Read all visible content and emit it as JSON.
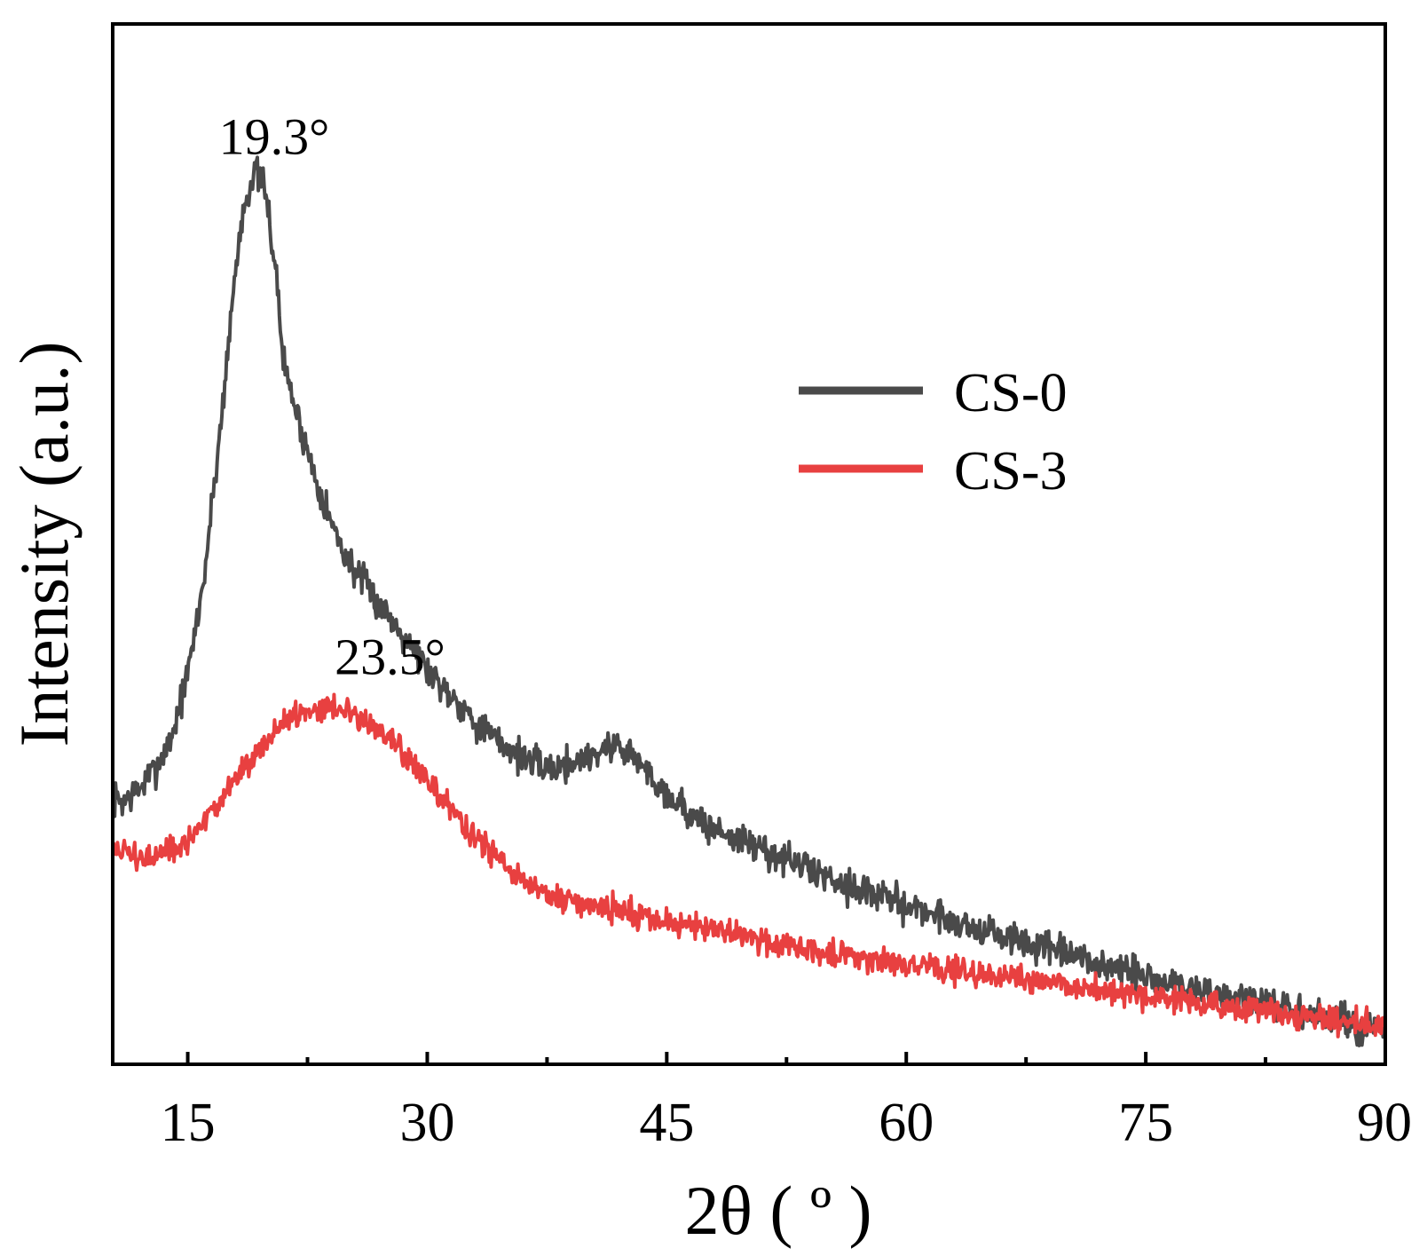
{
  "chart_data": {
    "type": "line",
    "title": "",
    "xlabel": "2θ ( º )",
    "ylabel": "Intensity (a.u.)",
    "xlim": [
      10.3,
      90
    ],
    "ylim": [
      0,
      100
    ],
    "x_ticks": [
      "15",
      "30",
      "45",
      "60",
      "75",
      "90"
    ],
    "x_tick_values": [
      15,
      30,
      45,
      60,
      75,
      90
    ],
    "x_minor_ticks": [
      22.5,
      37.5,
      52.5,
      67.5,
      82.5
    ],
    "y_ticks_shown": false,
    "legend_position": "center-right",
    "annotations": [
      {
        "text": "19.3°",
        "x": 19.3,
        "y": 87.5
      },
      {
        "text": "23.5°",
        "x": 23.5,
        "y": 37.5
      }
    ],
    "series": [
      {
        "name": "CS-0",
        "color": "#4a4a4a",
        "noise": 1.4,
        "x": [
          10.3,
          11,
          12,
          13,
          14,
          15,
          16,
          17,
          18,
          18.5,
          19,
          19.3,
          19.6,
          20,
          20.5,
          21,
          22,
          23,
          24,
          25,
          26,
          27,
          28,
          29,
          30,
          31,
          32,
          33,
          34,
          35,
          36,
          37,
          38,
          39,
          40,
          41,
          42,
          43,
          44,
          45,
          46,
          47,
          48,
          50,
          52,
          54,
          56,
          58,
          60,
          62,
          64,
          66,
          68,
          70,
          72,
          74,
          76,
          78,
          80,
          82,
          84,
          86,
          88,
          90
        ],
        "values": [
          25.5,
          25.3,
          26.5,
          28.5,
          31.5,
          37.5,
          46.5,
          60.5,
          76.5,
          82.5,
          85.0,
          85.8,
          85.0,
          82.5,
          76.5,
          67.5,
          61.5,
          56.5,
          52.0,
          48.5,
          46.3,
          44.2,
          42.3,
          40.5,
          38.0,
          36.3,
          34.8,
          33.0,
          31.5,
          30.5,
          29.5,
          28.7,
          28.5,
          29.0,
          29.5,
          30.3,
          30.7,
          29.5,
          27.7,
          26.0,
          24.8,
          23.3,
          22.6,
          21.3,
          20.0,
          18.7,
          17.5,
          16.3,
          15.3,
          14.3,
          13.2,
          12.3,
          11.4,
          10.5,
          9.6,
          8.8,
          8.0,
          7.3,
          6.6,
          5.9,
          5.2,
          4.5,
          3.8,
          3.1
        ]
      },
      {
        "name": "CS-3",
        "color": "#e84040",
        "noise": 1.1,
        "x": [
          10.3,
          11,
          12,
          13,
          14,
          15,
          16,
          17,
          18,
          19,
          20,
          21,
          22,
          23,
          23.5,
          24,
          25,
          26,
          27,
          28,
          29,
          30,
          31,
          32,
          33,
          34,
          35,
          36,
          37,
          38,
          40,
          42,
          44,
          46,
          48,
          50,
          52,
          54,
          56,
          58,
          60,
          62,
          64,
          66,
          68,
          70,
          72,
          74,
          76,
          78,
          80,
          82,
          84,
          86,
          88,
          90
        ],
        "values": [
          20.7,
          20.4,
          19.8,
          19.8,
          20.4,
          21.3,
          23.2,
          25.2,
          27.4,
          29.5,
          31.2,
          32.8,
          33.8,
          34.3,
          34.4,
          34.4,
          34.1,
          33.3,
          32.1,
          30.6,
          29.0,
          27.3,
          25.5,
          23.6,
          21.8,
          20.2,
          18.7,
          17.6,
          16.6,
          16.0,
          15.3,
          14.8,
          14.1,
          13.4,
          12.8,
          12.2,
          11.7,
          11.1,
          10.6,
          10.1,
          9.6,
          9.2,
          8.8,
          8.4,
          8.0,
          7.6,
          7.2,
          6.8,
          6.4,
          6.0,
          5.6,
          5.2,
          4.8,
          4.4,
          4.0,
          3.6
        ]
      }
    ]
  }
}
